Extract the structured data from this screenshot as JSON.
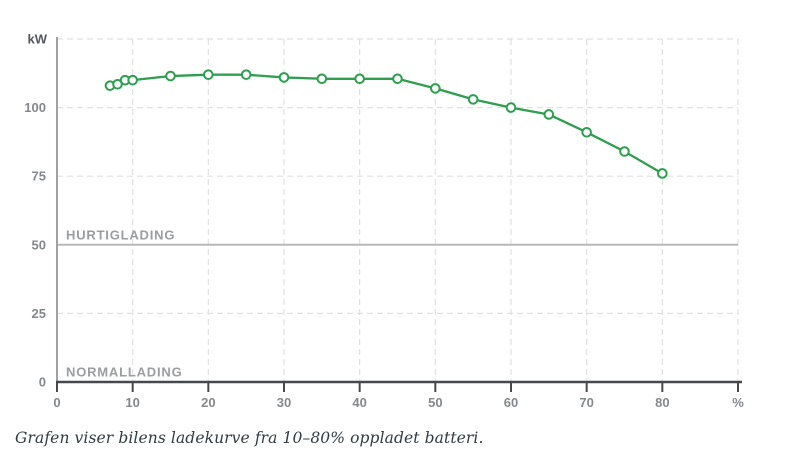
{
  "caption": "Grafen viser bilens ladekurve fra 10–80% oppladet batteri.",
  "colors": {
    "curve": "#2e9e4f",
    "marker_fill": "#ffffff",
    "grid": "#e0e1e3",
    "y_axis": "#9fa2a4",
    "x_axis": "#45494c",
    "threshold_line": "#b6b8ba",
    "tick_label": "#85888b",
    "zone_label": "#9b9ea1",
    "unit_label": "#54585b",
    "caption_text": "#2f3b42",
    "background": "#ffffff"
  },
  "chart_data": {
    "type": "line",
    "title": "",
    "series_name": "ladekurve",
    "ylabel": "kW",
    "xlabel": "%",
    "x": [
      7,
      8,
      9,
      10,
      15,
      20,
      25,
      30,
      35,
      40,
      45,
      50,
      55,
      60,
      65,
      70,
      75,
      80
    ],
    "y": [
      108,
      108.5,
      110,
      110,
      111.5,
      112,
      112,
      111,
      110.5,
      110.5,
      110.5,
      107,
      103,
      100,
      97.5,
      91,
      84,
      76
    ],
    "xlim": [
      0,
      90
    ],
    "ylim": [
      0,
      125
    ],
    "x_ticks": [
      0,
      10,
      20,
      30,
      40,
      50,
      60,
      70,
      80
    ],
    "y_ticks": [
      0,
      25,
      50,
      75,
      100
    ],
    "x_gridlines": [
      10,
      20,
      30,
      40,
      50,
      60,
      70,
      80,
      90
    ],
    "y_gridlines": [
      25,
      75,
      100,
      125
    ],
    "grid_style": "dashed",
    "legend": false,
    "marker": "open-circle",
    "zone_labels": [
      {
        "label": "HURTIGLADING",
        "y": 50,
        "has_line": true
      },
      {
        "label": "NORMALLADING",
        "y": 0,
        "has_line": false
      }
    ]
  }
}
